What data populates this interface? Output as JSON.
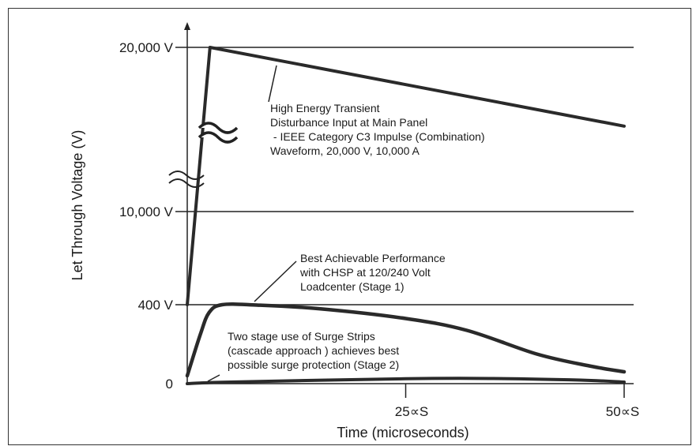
{
  "chart_data": {
    "type": "line",
    "title": "",
    "xlabel": "Time (microseconds)",
    "ylabel": "Let Through Voltage (V)",
    "x_ticks": [
      "25∝S",
      "50∝S"
    ],
    "y_ticks": [
      "0",
      "400 V",
      "10,000 V",
      "20,000 V"
    ],
    "y_scale": "broken (non-linear)",
    "grid": "horizontal lines at each y tick",
    "series": [
      {
        "points": [
          [
            0,
            400
          ],
          [
            2.6,
            20000
          ],
          [
            50,
            15200
          ]
        ]
      },
      {
        "points": [
          [
            0,
            40
          ],
          [
            1.5,
            250
          ],
          [
            2.5,
            360
          ],
          [
            4,
            400
          ],
          [
            8,
            398
          ],
          [
            15,
            380
          ],
          [
            25,
            330
          ],
          [
            32,
            270
          ],
          [
            40,
            150
          ],
          [
            46,
            90
          ],
          [
            50,
            60
          ]
        ]
      },
      {
        "points": [
          [
            0,
            0
          ],
          [
            5,
            8
          ],
          [
            25,
            25
          ],
          [
            35,
            26
          ],
          [
            45,
            18
          ],
          [
            50,
            8
          ]
        ]
      }
    ],
    "annotations": [
      {
        "lines": [
          "High Energy Transient",
          "Disturbance Input at Main Panel",
          " - IEEE Category C3 Impulse (Combination)",
          "Waveform, 20,000 V, 10,000 A"
        ]
      },
      {
        "lines": [
          "Best Achievable Performance",
          "with CHSP at 120/240 Volt",
          "Loadcenter (Stage 1)"
        ]
      },
      {
        "lines": [
          "Two stage use of Surge Strips",
          "(cascade approach ) achieves best",
          "possible surge protection (Stage 2)"
        ]
      }
    ],
    "axis_break_marks": 2
  }
}
